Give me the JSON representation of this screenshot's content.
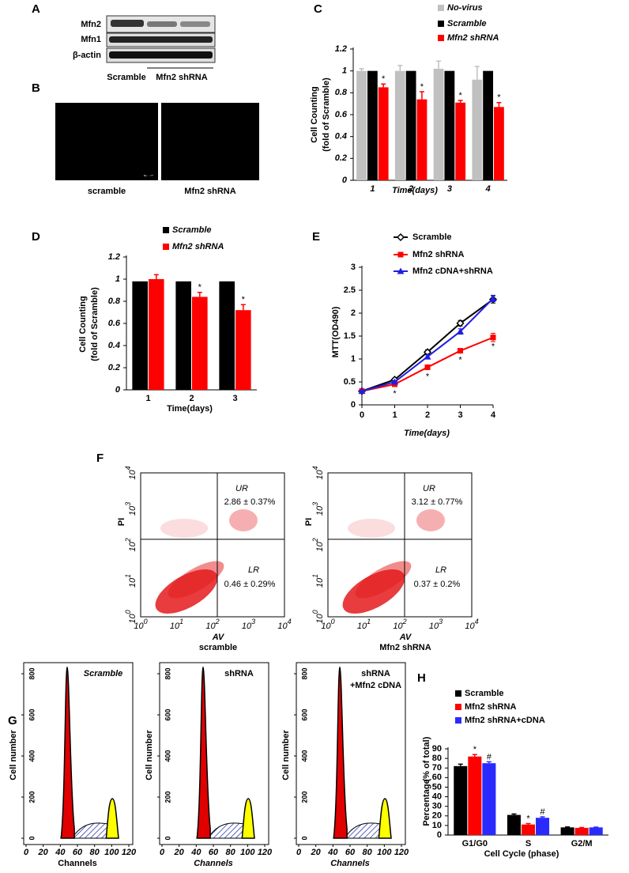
{
  "panels": {
    "A": {
      "letter": "A",
      "rows": [
        "Mfn2",
        "Mfn1",
        "β-actin"
      ],
      "lanes": [
        "Scramble",
        "Mfn2 shRNA"
      ]
    },
    "B": {
      "letter": "B",
      "captions": [
        "scramble",
        "Mfn2 shRNA"
      ]
    },
    "F": {
      "letter": "F",
      "x_label": "AV",
      "y_label": "PI",
      "ticks": [
        [
          "10",
          "0"
        ],
        [
          "10",
          "1"
        ],
        [
          "10",
          "2"
        ],
        [
          "10",
          "3"
        ],
        [
          "10",
          "4"
        ]
      ],
      "plots": [
        {
          "caption": "scramble",
          "ur_label": "UR",
          "ur_value": "2.86 ± 0.37%",
          "lr_label": "LR",
          "lr_value": "0.46 ± 0.29%"
        },
        {
          "caption": "Mfn2 shRNA",
          "ur_label": "UR",
          "ur_value": "3.12 ± 0.77%",
          "lr_label": "LR",
          "lr_value": "0.37 ± 0.2%"
        }
      ]
    },
    "G": {
      "letter": "G",
      "x_label": "Channels",
      "y_label": "Cell number",
      "xticks": [
        0,
        20,
        40,
        60,
        80,
        100,
        120
      ],
      "yticks": [
        0,
        200,
        400,
        600,
        800
      ],
      "plots": [
        {
          "label": [
            "Scramble"
          ]
        },
        {
          "label": [
            "shRNA"
          ]
        },
        {
          "label": [
            "shRNA",
            "+Mfn2 cDNA"
          ]
        }
      ]
    }
  },
  "chart_data": [
    {
      "type": "bar",
      "panel_label": "C",
      "x_label": "Time(days)",
      "y_label": [
        "Cell Counting",
        "(fold of Scramble)"
      ],
      "categories": [
        "1",
        "2",
        "3",
        "4"
      ],
      "ylim": [
        0,
        1.2
      ],
      "yticks": [
        0,
        0.2,
        0.4,
        0.6,
        0.8,
        1,
        1.2
      ],
      "series": [
        {
          "name": "No-virus",
          "color": "#c0c0c0",
          "values": [
            1.0,
            1.0,
            1.02,
            0.92
          ],
          "errors": [
            0.02,
            0.05,
            0.07,
            0.12
          ]
        },
        {
          "name": "Scramble",
          "color": "#000000",
          "values": [
            1,
            1,
            1,
            1
          ]
        },
        {
          "name": "Mfn2 shRNA",
          "color": "#ff0000",
          "values": [
            0.85,
            0.74,
            0.71,
            0.67
          ],
          "errors": [
            0.03,
            0.07,
            0.02,
            0.04
          ],
          "significance": [
            "*",
            "*",
            "*",
            "*"
          ]
        }
      ]
    },
    {
      "type": "bar",
      "panel_label": "D",
      "x_label": "Time(days)",
      "y_label": [
        "Cell Counting",
        "(fold of Scramble)"
      ],
      "categories": [
        "1",
        "2",
        "3"
      ],
      "ylim": [
        0,
        1.2
      ],
      "yticks": [
        0,
        0.2,
        0.4,
        0.6,
        0.8,
        1,
        1.2
      ],
      "series": [
        {
          "name": "Scramble",
          "color": "#000000",
          "values": [
            0.98,
            0.98,
            0.98
          ]
        },
        {
          "name": "Mfn2 shRNA",
          "color": "#ff0000",
          "values": [
            1.0,
            0.84,
            0.72
          ],
          "errors": [
            0.04,
            0.04,
            0.05
          ],
          "significance": [
            null,
            "*",
            "*"
          ]
        }
      ]
    },
    {
      "type": "line",
      "panel_label": "E",
      "x_label": "Time(days)",
      "y_label": [
        "MTT(OD490)"
      ],
      "x": [
        0,
        1,
        2,
        3,
        4
      ],
      "xlim": [
        0,
        4
      ],
      "xticks": [
        0,
        1,
        2,
        3,
        4
      ],
      "ylim": [
        0,
        3
      ],
      "yticks": [
        0,
        0.5,
        1,
        1.5,
        2,
        2.5,
        3
      ],
      "series": [
        {
          "name": "Scramble",
          "color": "#000000",
          "marker": "diamond",
          "values": [
            0.3,
            0.55,
            1.15,
            1.78,
            2.3
          ],
          "errors": [
            0.02,
            0.03,
            0.05,
            0.06,
            0.08
          ]
        },
        {
          "name": "Mfn2 shRNA",
          "color": "#ff0000",
          "marker": "square",
          "values": [
            0.3,
            0.45,
            0.82,
            1.18,
            1.47
          ],
          "errors": [
            0.02,
            0.03,
            0.05,
            0.04,
            0.09
          ],
          "significance": [
            null,
            "*",
            "*",
            "*",
            "*"
          ]
        },
        {
          "name": "Mfn2 cDNA+shRNA",
          "color": "#1f1fe0",
          "marker": "triangle",
          "values": [
            0.3,
            0.5,
            1.05,
            1.6,
            2.32
          ],
          "errors": [
            0.02,
            0.03,
            0.04,
            0.06,
            0.07
          ]
        }
      ]
    },
    {
      "type": "bar",
      "panel_label": "H",
      "x_label": "Cell Cycle (phase)",
      "y_label": [
        "Percentage",
        "(% of total)"
      ],
      "categories": [
        "G1/G0",
        "S",
        "G2/M"
      ],
      "ylim": [
        0,
        90
      ],
      "yticks": [
        0,
        10,
        20,
        30,
        40,
        50,
        60,
        70,
        80,
        90
      ],
      "series": [
        {
          "name": "Scramble",
          "color": "#000000",
          "values": [
            72,
            21,
            8
          ],
          "errors": [
            2,
            1,
            0.5
          ]
        },
        {
          "name": "Mfn2 shRNA",
          "color": "#ff0000",
          "values": [
            82,
            11,
            7.5
          ],
          "errors": [
            2,
            1,
            0.3
          ],
          "significance": [
            "*",
            "*",
            null
          ]
        },
        {
          "name": "Mfn2 shRNA+cDNA",
          "color": "#2a2aff",
          "values": [
            75,
            18,
            8
          ],
          "errors": [
            1.5,
            1,
            0.3
          ],
          "significance": [
            "#",
            "#",
            null
          ]
        }
      ]
    }
  ]
}
